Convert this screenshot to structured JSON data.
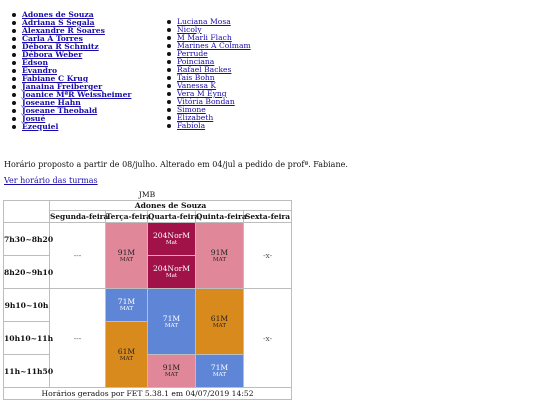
{
  "teachers_left": [
    "Adones de Souza",
    "Adriana S Segala",
    "Alexandre R Soares",
    "Carla A Torres",
    "Débora R Schmitz",
    "Débora Weber",
    "Edson",
    "Evandro",
    "Fabiane C Krug",
    "Janaina Freiberger",
    "Joanice MªR Weissheimer",
    "Joseane Hahn",
    "Joseane Theobald",
    "Josué",
    "Ezequiel"
  ],
  "teachers_right": [
    "Luciana Mosa",
    "Nicoly",
    "M Marli Flach",
    "Marines A Colmam",
    "Perrude",
    "Poinciana",
    "Rafael Backes",
    "Taís Bohn",
    "Vanessa K",
    "Vera M Eyng",
    "Vitória Bondan",
    "Simone",
    "Elizabeth",
    "Fabíola"
  ],
  "note": "Horário proposto a partir de 08/julho. Alterado em 04/jul a pedido de profª. Fabiane.",
  "link_turmas": "Ver horário das turmas",
  "timetable": {
    "caption": "JMB",
    "teacher": "Adones de Souza",
    "days": [
      "Segunda-feira",
      "Terça-feira",
      "Quarta-feira",
      "Quinta-feira",
      "Sexta-feira"
    ],
    "hours": [
      "7h30~8h20",
      "8h20~9h10",
      "9h10~10h",
      "10h10~11h",
      "11h~11h50"
    ],
    "empty_mark": "---",
    "x_mark": "-x-",
    "cells": {
      "tue_a": {
        "code": "91M",
        "subject": "MAT"
      },
      "wed_1": {
        "code": "204NorM",
        "subject": "Mat"
      },
      "wed_2": {
        "code": "204NorM",
        "subject": "Mat"
      },
      "thu_a": {
        "code": "91M",
        "subject": "MAT"
      },
      "tue_b": {
        "code": "71M",
        "subject": "MAT"
      },
      "wed_b": {
        "code": "71M",
        "subject": "MAT"
      },
      "thu_b": {
        "code": "61M",
        "subject": "MAT"
      },
      "tue_c": {
        "code": "61M",
        "subject": "MAT"
      },
      "wed_c": {
        "code": "91M",
        "subject": "MAT"
      },
      "thu_c": {
        "code": "71M",
        "subject": "MAT"
      }
    },
    "footer": "Horários gerados por FET 5.38.1 em 04/07/2019 14:52"
  },
  "colors": {
    "link": "#1a0dab",
    "pink": "#e0879a",
    "wine": "#a01248",
    "blue": "#5f86d6",
    "orange": "#d98a1c"
  }
}
